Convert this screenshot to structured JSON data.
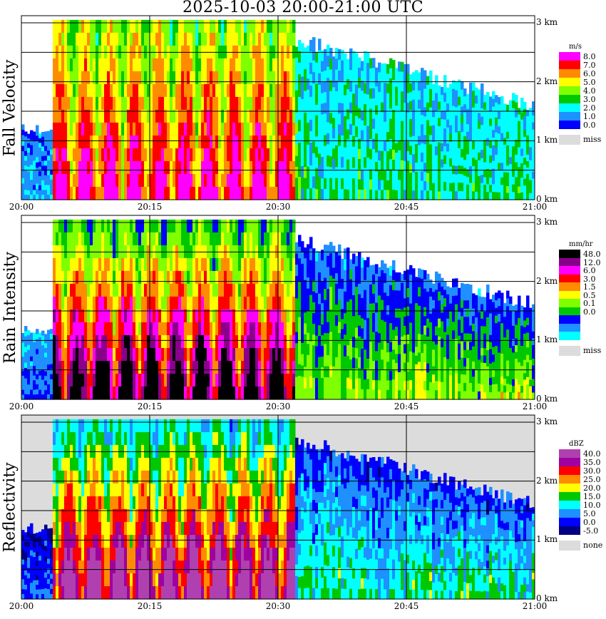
{
  "title": "2025-10-03   20:00-21:00 UTC",
  "time_labels": [
    "20:00",
    "20:15",
    "20:30",
    "20:45",
    "21:00"
  ],
  "height_labels": [
    "3 km",
    "2 km",
    "1 km",
    "0 km"
  ],
  "panels": [
    {
      "id": "fall-velocity",
      "ylabel": "Fall Velocity",
      "unit": "m/s",
      "legend": [
        {
          "label": "8.0",
          "color": "#ff00ff"
        },
        {
          "label": "7.0",
          "color": "#ff0000"
        },
        {
          "label": "6.0",
          "color": "#ff8c00"
        },
        {
          "label": "5.0",
          "color": "#ffff00"
        },
        {
          "label": "4.0",
          "color": "#7fff00"
        },
        {
          "label": "3.0",
          "color": "#00c800"
        },
        {
          "label": "2.0",
          "color": "#00ffff"
        },
        {
          "label": "1.0",
          "color": "#1e90ff"
        },
        {
          "label": "0.0",
          "color": "#0000ff"
        },
        {
          "label": "miss",
          "color": "#dcdcdc"
        }
      ]
    },
    {
      "id": "rain-intensity",
      "ylabel": "Rain Intensity",
      "unit": "mm/hr",
      "legend": [
        {
          "label": "48.0",
          "color": "#000000"
        },
        {
          "label": "12.0",
          "color": "#8b008b"
        },
        {
          "label": "6.0",
          "color": "#ff00ff"
        },
        {
          "label": "3.0",
          "color": "#ff0000"
        },
        {
          "label": "1.5",
          "color": "#ff8c00"
        },
        {
          "label": "0.5",
          "color": "#ffff00"
        },
        {
          "label": "0.1",
          "color": "#7fff00"
        },
        {
          "label": "0.0",
          "color": "#00c800"
        },
        {
          "label": "",
          "color": "#0000ff"
        },
        {
          "label": "",
          "color": "#1e90ff"
        },
        {
          "label": "",
          "color": "#00ffff"
        },
        {
          "label": "miss",
          "color": "#dcdcdc"
        }
      ]
    },
    {
      "id": "reflectivity",
      "ylabel": "Reflectivity",
      "unit": "dBZ",
      "legend": [
        {
          "label": "40.0",
          "color": "#b040b0"
        },
        {
          "label": "35.0",
          "color": "#a000a0"
        },
        {
          "label": "30.0",
          "color": "#ff0000"
        },
        {
          "label": "25.0",
          "color": "#ff8c00"
        },
        {
          "label": "20.0",
          "color": "#ffff00"
        },
        {
          "label": "15.0",
          "color": "#00c800"
        },
        {
          "label": "10.0",
          "color": "#00ffff"
        },
        {
          "label": "5.0",
          "color": "#1e90ff"
        },
        {
          "label": "0.0",
          "color": "#0000ff"
        },
        {
          "label": "-5.0",
          "color": "#000080"
        },
        {
          "label": "none",
          "color": "#dcdcdc"
        }
      ]
    }
  ],
  "chart_data": [
    {
      "type": "heatmap",
      "title": "2025-10-03   20:00-21:00 UTC",
      "ylabel": "Fall Velocity",
      "unit": "m/s",
      "x_range": [
        "20:00",
        "21:00"
      ],
      "y_range_km": [
        0,
        3
      ],
      "x_ticks": [
        "20:00",
        "20:15",
        "20:30",
        "20:45",
        "21:00"
      ],
      "y_ticks": [
        "0 km",
        "1 km",
        "2 km",
        "3 km"
      ],
      "grid": true,
      "colorbar": [
        "8.0",
        "7.0",
        "6.0",
        "5.0",
        "4.0",
        "3.0",
        "2.0",
        "1.0",
        "0.0",
        "miss"
      ]
    },
    {
      "type": "heatmap",
      "ylabel": "Rain Intensity",
      "unit": "mm/hr",
      "x_range": [
        "20:00",
        "21:00"
      ],
      "y_range_km": [
        0,
        3
      ],
      "x_ticks": [
        "20:00",
        "20:15",
        "20:30",
        "20:45",
        "21:00"
      ],
      "y_ticks": [
        "0 km",
        "1 km",
        "2 km",
        "3 km"
      ],
      "grid": true,
      "colorbar": [
        "48.0",
        "12.0",
        "6.0",
        "3.0",
        "1.5",
        "0.5",
        "0.1",
        "0.0",
        "miss"
      ]
    },
    {
      "type": "heatmap",
      "ylabel": "Reflectivity",
      "unit": "dBZ",
      "x_range": [
        "20:00",
        "21:00"
      ],
      "y_range_km": [
        0,
        3
      ],
      "x_ticks": [
        "20:00",
        "20:15",
        "20:30",
        "20:45",
        "21:00"
      ],
      "y_ticks": [
        "0 km",
        "1 km",
        "2 km",
        "3 km"
      ],
      "grid": true,
      "colorbar": [
        "40.0",
        "35.0",
        "30.0",
        "25.0",
        "20.0",
        "15.0",
        "10.0",
        "5.0",
        "0.0",
        "-5.0",
        "none"
      ]
    }
  ]
}
